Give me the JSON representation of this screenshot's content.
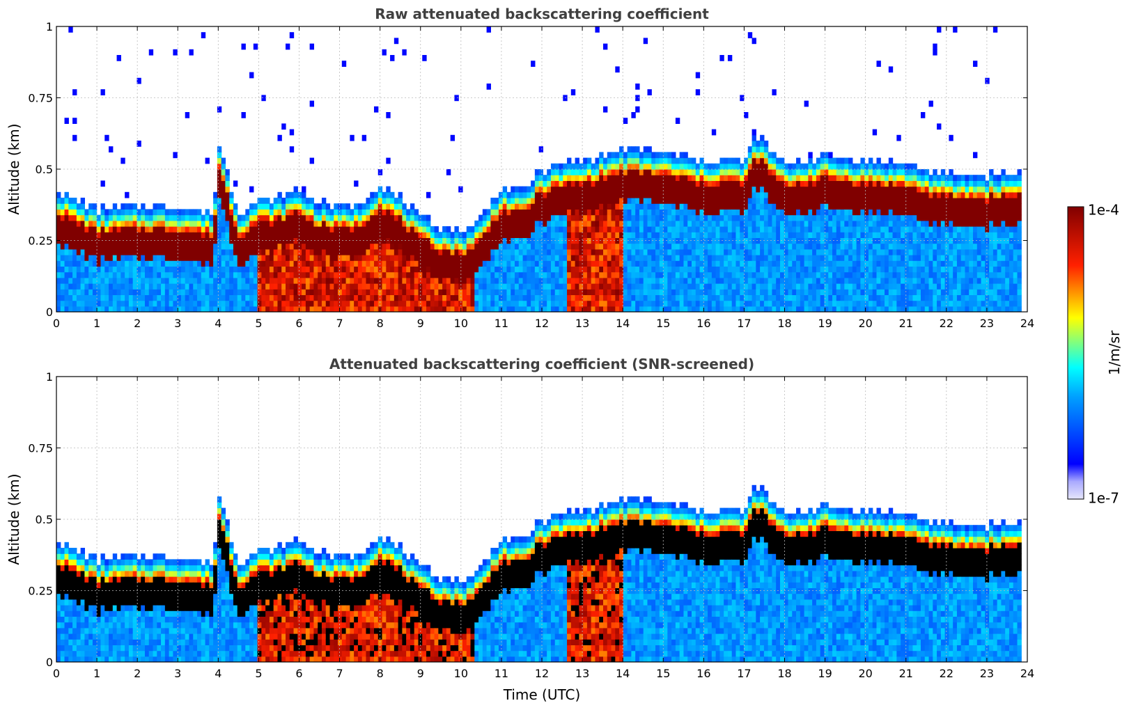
{
  "chart_data": [
    {
      "type": "heatmap",
      "title": "Raw attenuated backscattering coefficient",
      "xlabel": "",
      "ylabel": "Altitude (km)",
      "xlim": [
        0,
        24
      ],
      "ylim": [
        0,
        1
      ],
      "x_ticks": [
        "0",
        "1",
        "2",
        "3",
        "4",
        "5",
        "6",
        "7",
        "8",
        "9",
        "10",
        "11",
        "12",
        "13",
        "14",
        "15",
        "16",
        "17",
        "18",
        "19",
        "20",
        "21",
        "22",
        "23",
        "24"
      ],
      "y_ticks": [
        "0",
        "0.25",
        "0.5",
        "0.75",
        "1"
      ],
      "grid": true,
      "layer_top_km": [
        [
          0,
          0.43
        ],
        [
          1,
          0.36
        ],
        [
          2,
          0.37
        ],
        [
          3,
          0.37
        ],
        [
          3.9,
          0.35
        ],
        [
          4,
          0.6
        ],
        [
          4.5,
          0.35
        ],
        [
          5,
          0.4
        ],
        [
          5.5,
          0.4
        ],
        [
          6,
          0.43
        ],
        [
          6.5,
          0.38
        ],
        [
          7,
          0.37
        ],
        [
          7.5,
          0.38
        ],
        [
          8,
          0.45
        ],
        [
          8.5,
          0.4
        ],
        [
          9,
          0.33
        ],
        [
          9.5,
          0.3
        ],
        [
          10,
          0.28
        ],
        [
          10.5,
          0.33
        ],
        [
          11,
          0.44
        ],
        [
          11.5,
          0.42
        ],
        [
          12,
          0.5
        ],
        [
          12.5,
          0.52
        ],
        [
          13,
          0.53
        ],
        [
          13.5,
          0.55
        ],
        [
          14,
          0.57
        ],
        [
          15,
          0.56
        ],
        [
          16,
          0.53
        ],
        [
          16.5,
          0.54
        ],
        [
          17,
          0.53
        ],
        [
          17.3,
          0.62
        ],
        [
          18,
          0.52
        ],
        [
          19,
          0.55
        ],
        [
          20,
          0.53
        ],
        [
          21,
          0.52
        ],
        [
          22,
          0.48
        ],
        [
          23,
          0.48
        ],
        [
          23.8,
          0.49
        ]
      ],
      "colorbar": {
        "min_label": "1e-7",
        "max_label": "1e-4",
        "label": "1/m/sr"
      }
    },
    {
      "type": "heatmap",
      "title": "Attenuated backscattering coefficient (SNR-screened)",
      "xlabel": "Time (UTC)",
      "ylabel": "Altitude (km)",
      "xlim": [
        0,
        24
      ],
      "ylim": [
        0,
        1
      ],
      "x_ticks": [
        "0",
        "1",
        "2",
        "3",
        "4",
        "5",
        "6",
        "7",
        "8",
        "9",
        "10",
        "11",
        "12",
        "13",
        "14",
        "15",
        "16",
        "17",
        "18",
        "19",
        "20",
        "21",
        "22",
        "23",
        "24"
      ],
      "y_ticks": [
        "0",
        "0.25",
        "0.5",
        "0.75",
        "1"
      ],
      "grid": true,
      "colorbar": {
        "min_label": "1e-7",
        "max_label": "1e-4",
        "label": "1/m/sr"
      }
    }
  ]
}
